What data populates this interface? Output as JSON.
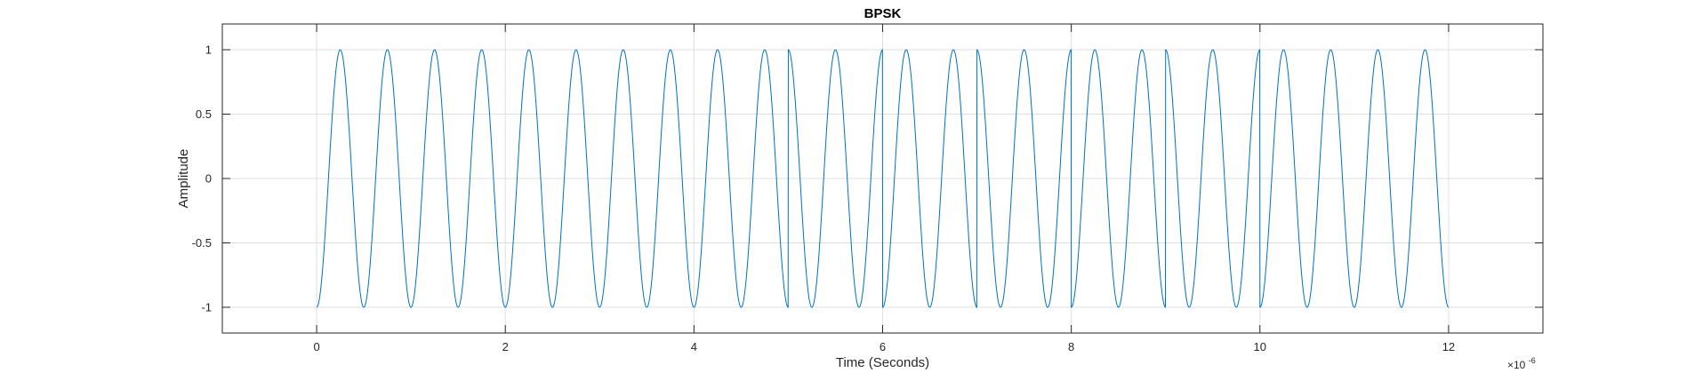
{
  "chart_data": {
    "type": "line",
    "title": "BPSK",
    "xlabel": "Time (Seconds)",
    "ylabel": "Amplitude",
    "x_exponent_label": "×10",
    "x_exponent_power": "-6",
    "xlim": [
      -1,
      13
    ],
    "ylim": [
      -1.2,
      1.2
    ],
    "xticks": [
      0,
      2,
      4,
      6,
      8,
      10,
      12
    ],
    "xtick_labels": [
      "0",
      "2",
      "4",
      "6",
      "8",
      "10",
      "12"
    ],
    "yticks": [
      -1,
      -0.5,
      0,
      0.5,
      1
    ],
    "ytick_labels": [
      "-1",
      "-0.5",
      "0",
      "0.5",
      "1"
    ],
    "grid": true,
    "series_color": "#0072BD",
    "signal": {
      "formula": "-cos(2*pi*f*t + phase)",
      "carrier_frequency_mhz": 2,
      "bit_duration_us": 1,
      "time_range_us": [
        0,
        12
      ],
      "phase_flip_times_us": [
        5,
        6,
        7,
        8,
        9,
        10
      ]
    }
  }
}
